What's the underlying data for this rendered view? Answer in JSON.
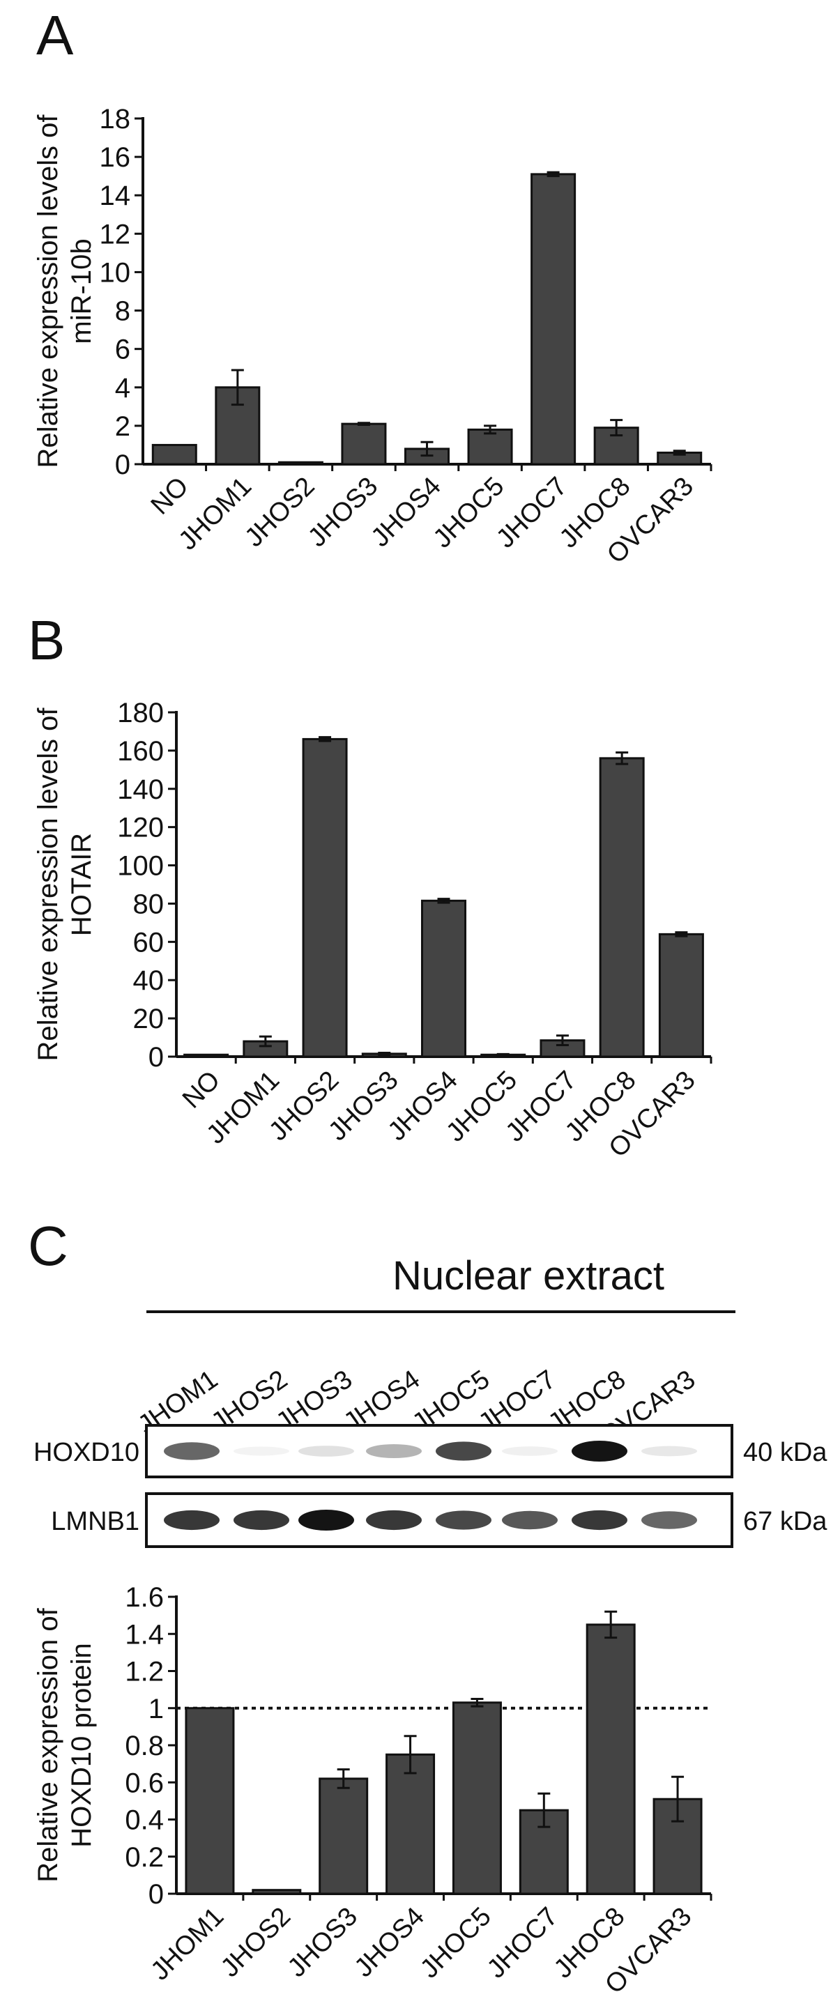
{
  "chart_data": [
    {
      "panel": "A",
      "type": "bar",
      "ylabel": [
        "Relative expression levels of",
        "miR-10b"
      ],
      "categories": [
        "NO",
        "JHOM1",
        "JHOS2",
        "JHOS3",
        "JHOS4",
        "JHOC5",
        "JHOC7",
        "JHOC8",
        "OVCAR3"
      ],
      "values": [
        1.0,
        4.0,
        0.1,
        2.1,
        0.8,
        1.8,
        15.1,
        1.9,
        0.6
      ],
      "errors": [
        0.0,
        0.9,
        0.0,
        0.05,
        0.35,
        0.2,
        0.1,
        0.4,
        0.1
      ],
      "yticks": [
        "0",
        "2",
        "4",
        "6",
        "8",
        "10",
        "12",
        "14",
        "16",
        "18"
      ],
      "ylim": [
        0,
        18
      ],
      "grid": false,
      "bar_color": "#444444"
    },
    {
      "panel": "B",
      "type": "bar",
      "ylabel": [
        "Relative expression levels of",
        "HOTAIR"
      ],
      "categories": [
        "NO",
        "JHOM1",
        "JHOS2",
        "JHOS3",
        "JHOS4",
        "JHOC5",
        "JHOC7",
        "JHOC8",
        "OVCAR3"
      ],
      "values": [
        1.0,
        8.0,
        166.0,
        1.5,
        81.5,
        1.0,
        8.5,
        156.0,
        64.0
      ],
      "errors": [
        0.0,
        2.5,
        1.0,
        0.5,
        1.0,
        0.3,
        2.5,
        3.0,
        1.0
      ],
      "yticks": [
        "0",
        "20",
        "40",
        "60",
        "80",
        "100",
        "120",
        "140",
        "160",
        "180"
      ],
      "ylim": [
        0,
        180
      ],
      "grid": false,
      "bar_color": "#444444"
    },
    {
      "panel": "C",
      "type": "bar",
      "ylabel": [
        "Relative expression of",
        "HOXD10 protein"
      ],
      "categories": [
        "JHOM1",
        "JHOS2",
        "JHOS3",
        "JHOS4",
        "JHOC5",
        "JHOC7",
        "JHOC8",
        "OVCAR3"
      ],
      "values": [
        1.0,
        0.02,
        0.62,
        0.75,
        1.03,
        0.45,
        1.45,
        0.51
      ],
      "errors": [
        0.0,
        0.0,
        0.05,
        0.1,
        0.02,
        0.09,
        0.07,
        0.12
      ],
      "yticks": [
        "0",
        "0.2",
        "0.4",
        "0.6",
        "0.8",
        "1",
        "1.2",
        "1.4",
        "1.6"
      ],
      "ylim": [
        0,
        1.6
      ],
      "reference_line": 1,
      "grid": false,
      "bar_color": "#444444"
    }
  ],
  "panels": {
    "a_label": "A",
    "b_label": "B",
    "c_label": "C"
  },
  "blot": {
    "title": "Nuclear extract",
    "lanes": [
      "JHOM1",
      "JHOS2",
      "JHOS3",
      "JHOS4",
      "JHOC5",
      "JHOC7",
      "JHOC8",
      "OVCAR3"
    ],
    "rows": [
      {
        "name": "HOXD10",
        "size": "40 kDa",
        "intensity": [
          0.75,
          0.05,
          0.2,
          0.45,
          0.85,
          0.08,
          1.0,
          0.15
        ]
      },
      {
        "name": "LMNB1",
        "size": "67 kDa",
        "intensity": [
          0.9,
          0.9,
          1.0,
          0.9,
          0.85,
          0.8,
          0.9,
          0.75
        ]
      }
    ]
  }
}
